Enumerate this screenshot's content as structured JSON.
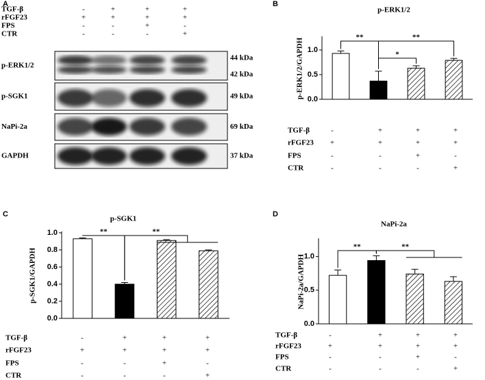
{
  "blot": {
    "panel": "A",
    "conditions": [
      {
        "label": "TGF-β",
        "signs": [
          "-",
          "+",
          "+",
          "+"
        ]
      },
      {
        "label": "rFGF23",
        "signs": [
          "+",
          "+",
          "+",
          "+"
        ]
      },
      {
        "label": "FPS",
        "signs": [
          "-",
          "-",
          "+",
          "-"
        ]
      },
      {
        "label": "CTR",
        "signs": [
          "-",
          "-",
          "-",
          "+"
        ]
      }
    ],
    "rows": [
      {
        "label": "p-ERK1/2",
        "sizes": [
          "44 kDa",
          "42 kDa"
        ]
      },
      {
        "label": "p-SGK1",
        "sizes": [
          "49 kDa"
        ]
      },
      {
        "label": "NaPi-2a",
        "sizes": [
          "69 kDa"
        ]
      },
      {
        "label": "GAPDH",
        "sizes": [
          "37 kDa"
        ]
      }
    ]
  },
  "chart_data": [
    {
      "type": "bar",
      "panel": "B",
      "title": "p-ERK1/2",
      "y_label": "p-ERK1/2/GAPDH",
      "values": [
        0.93,
        0.37,
        0.63,
        0.79
      ],
      "errors": [
        0.05,
        0.2,
        0.05,
        0.04
      ],
      "fills": [
        "white",
        "black",
        "hatch",
        "hatch"
      ],
      "ylim": [
        0,
        1.25
      ],
      "yticks": [
        {
          "value": 0,
          "label": "0.0"
        },
        {
          "value": 0.5,
          "label": "0.5"
        },
        {
          "value": 1,
          "label": "1.0"
        }
      ],
      "annotations": [
        "**",
        "**",
        "*"
      ],
      "conditions": [
        {
          "label": "TGF-β",
          "signs": [
            "-",
            "+",
            "+",
            "+"
          ]
        },
        {
          "label": "rFGF23",
          "signs": [
            "+",
            "+",
            "+",
            "+"
          ]
        },
        {
          "label": "FPS",
          "signs": [
            "-",
            "-",
            "+",
            "-"
          ]
        },
        {
          "label": "CTR",
          "signs": [
            "-",
            "-",
            "-",
            "+"
          ]
        }
      ]
    },
    {
      "type": "bar",
      "panel": "C",
      "title": "p-SGK1",
      "y_label": "p-SGK1/GAPDH",
      "values": [
        0.93,
        0.4,
        0.91,
        0.79
      ],
      "errors": [
        0.01,
        0.02,
        0.01,
        0.01
      ],
      "fills": [
        "white",
        "black",
        "hatch",
        "hatch"
      ],
      "ylim": [
        0,
        1
      ],
      "yticks": [
        {
          "value": 0,
          "label": "0.0"
        },
        {
          "value": 0.2,
          "label": "0.2"
        },
        {
          "value": 0.4,
          "label": "0.4"
        },
        {
          "value": 0.6,
          "label": "0.6"
        },
        {
          "value": 0.8,
          "label": "0.8"
        },
        {
          "value": 1,
          "label": "1.0"
        }
      ],
      "annotations": [
        "**",
        "**"
      ],
      "conditions": [
        {
          "label": "TGF-β",
          "signs": [
            "-",
            "+",
            "+",
            "+"
          ]
        },
        {
          "label": "rFGF23",
          "signs": [
            "+",
            "+",
            "+",
            "+"
          ]
        },
        {
          "label": "FPS",
          "signs": [
            "-",
            "-",
            "+",
            "-"
          ]
        },
        {
          "label": "CTR",
          "signs": [
            "-",
            "-",
            "-",
            "+"
          ]
        }
      ]
    },
    {
      "type": "bar",
      "panel": "D",
      "title": "NaPi-2a",
      "y_label": "NaPi-2a/GAPDH",
      "values": [
        0.72,
        0.94,
        0.74,
        0.63
      ],
      "errors": [
        0.08,
        0.07,
        0.07,
        0.07
      ],
      "fills": [
        "white",
        "black",
        "hatch",
        "hatch"
      ],
      "ylim": [
        0,
        1.25
      ],
      "yticks": [
        {
          "value": 0,
          "label": "0.0"
        },
        {
          "value": 0.5,
          "label": "0.5"
        },
        {
          "value": 1,
          "label": "1.0"
        }
      ],
      "annotations": [
        "**",
        "**"
      ],
      "conditions": [
        {
          "label": "TGF-β",
          "signs": [
            "-",
            "+",
            "+",
            "+"
          ]
        },
        {
          "label": "rFGF23",
          "signs": [
            "+",
            "+",
            "+",
            "+"
          ]
        },
        {
          "label": "FPS",
          "signs": [
            "-",
            "-",
            "+",
            "-"
          ]
        },
        {
          "label": "CTR",
          "signs": [
            "-",
            "-",
            "-",
            "+"
          ]
        }
      ]
    }
  ]
}
